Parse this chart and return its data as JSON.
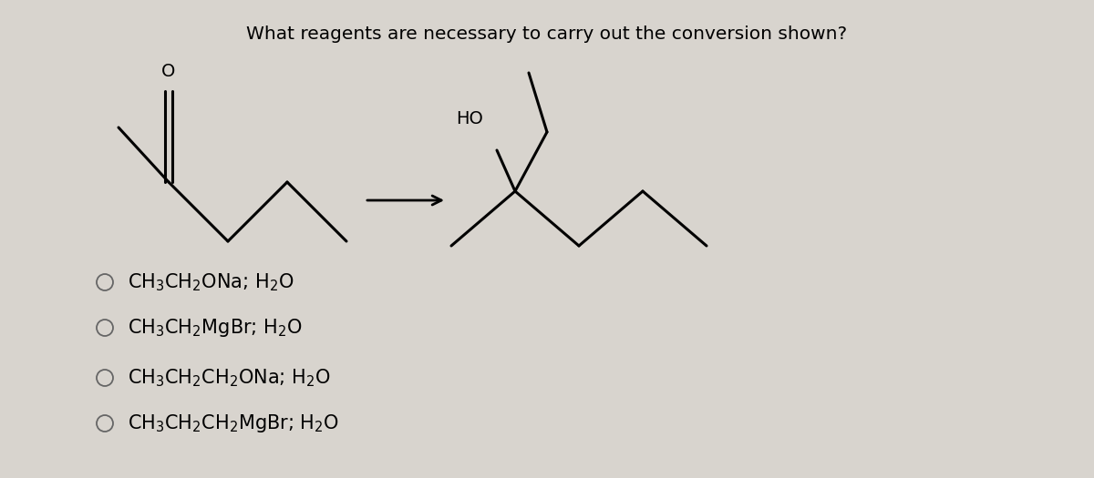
{
  "title": "What reagents are necessary to carry out the conversion shown?",
  "title_fontsize": 14.5,
  "background_color": "#d8d4ce",
  "text_color": "#000000",
  "choice_texts_latex": [
    "CH$_3$CH$_2$ONa; H$_2$O",
    "CH$_3$CH$_2$MgBr; H$_2$O",
    "CH$_3$CH$_2$CH$_2$ONa; H$_2$O",
    "CH$_3$CH$_2$CH$_2$MgBr; H$_2$O"
  ],
  "choice_fontsize": 15
}
